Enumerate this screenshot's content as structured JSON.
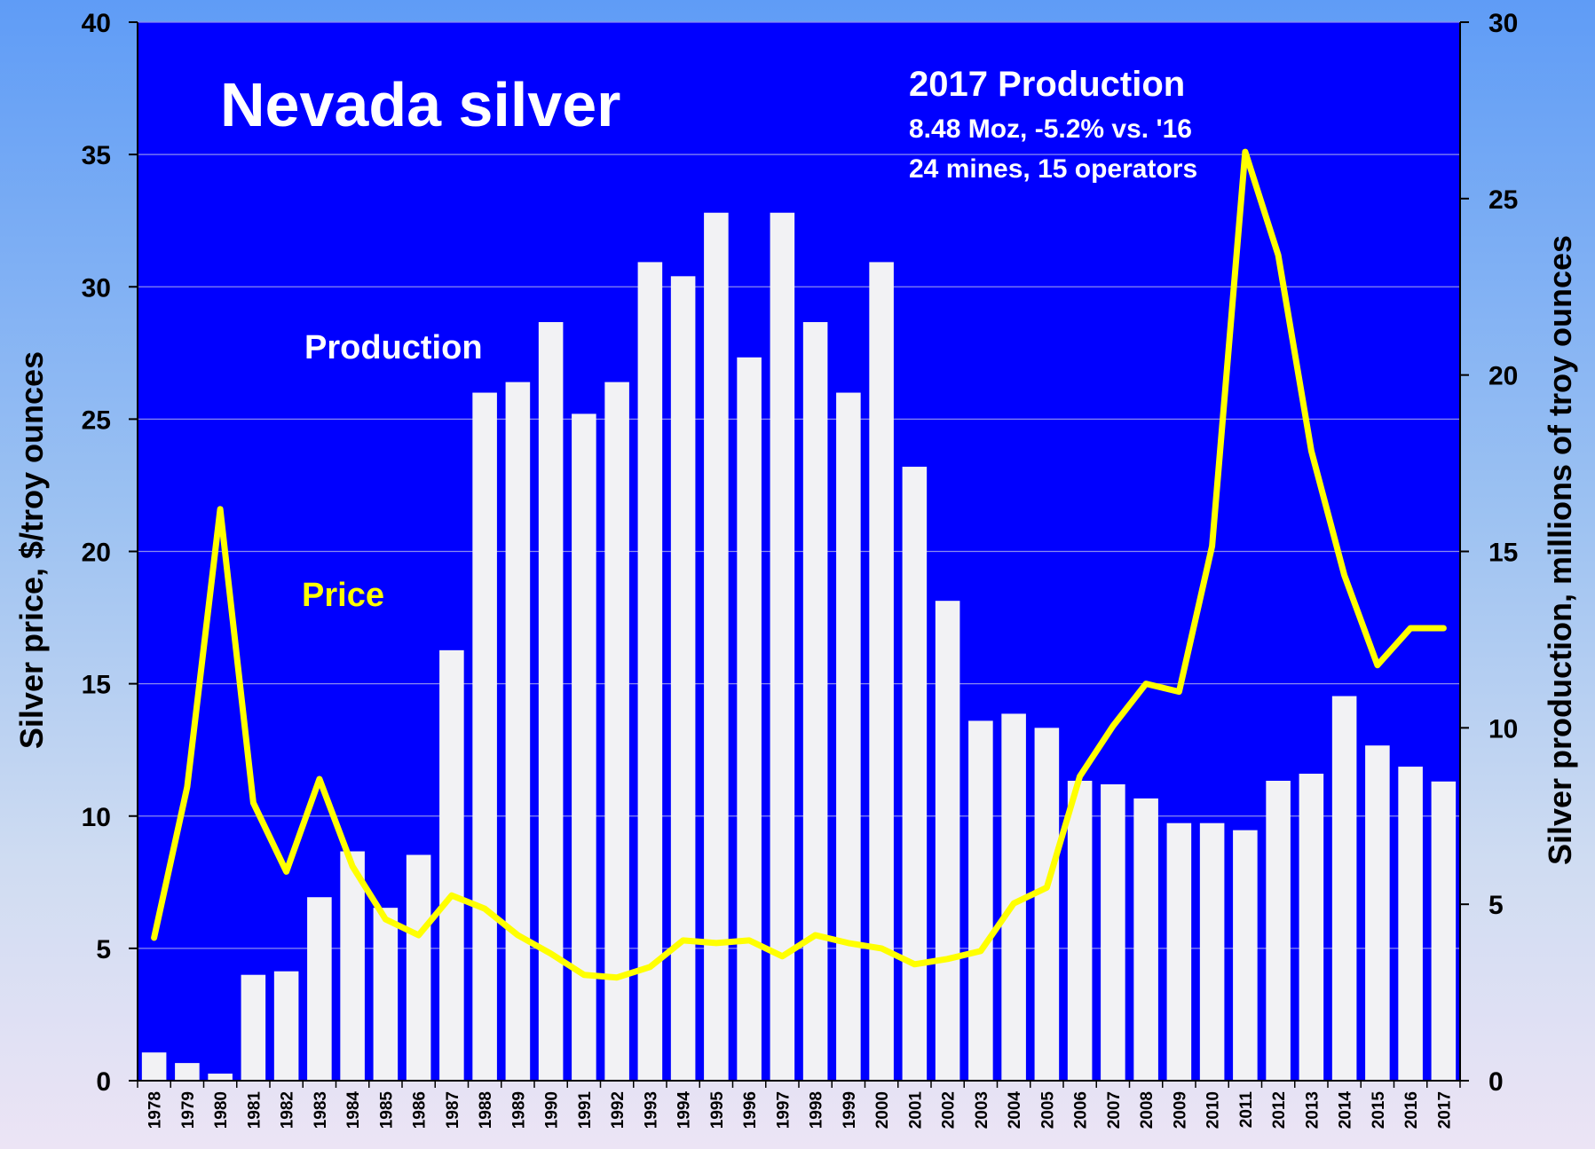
{
  "chart_data": {
    "type": "bar+line",
    "title": "Nevada silver",
    "annotation": {
      "heading": "2017 Production",
      "line1": "8.48 Moz, -5.2% vs. '16",
      "line2": "24 mines, 15 operators"
    },
    "ylabel_left": "Silver price, $/troy ounces",
    "ylabel_right": "Silver production, millions of troy ounces",
    "ylim_left": [
      0,
      40
    ],
    "ylim_right": [
      0,
      30
    ],
    "yticks_left": [
      "0",
      "5",
      "10",
      "15",
      "20",
      "25",
      "30",
      "35",
      "40"
    ],
    "yticks_right": [
      "0",
      "5",
      "10",
      "15",
      "20",
      "25",
      "30"
    ],
    "categories": [
      "1978",
      "1979",
      "1980",
      "1981",
      "1982",
      "1983",
      "1984",
      "1985",
      "1986",
      "1987",
      "1988",
      "1989",
      "1990",
      "1991",
      "1992",
      "1993",
      "1994",
      "1995",
      "1996",
      "1997",
      "1998",
      "1999",
      "2000",
      "2001",
      "2002",
      "2003",
      "2004",
      "2005",
      "2006",
      "2007",
      "2008",
      "2009",
      "2010",
      "2011",
      "2012",
      "2013",
      "2014",
      "2015",
      "2016",
      "2017"
    ],
    "series": [
      {
        "name": "Production",
        "type": "bar",
        "axis": "right",
        "color": "#f2f2f4",
        "values": [
          0.8,
          0.5,
          0.2,
          3.0,
          3.1,
          5.2,
          6.5,
          4.9,
          6.4,
          12.2,
          19.5,
          19.8,
          21.5,
          18.9,
          19.8,
          23.2,
          22.8,
          24.6,
          20.5,
          24.6,
          21.5,
          19.5,
          23.2,
          17.4,
          13.6,
          10.2,
          10.4,
          10.0,
          8.5,
          8.4,
          8.0,
          7.3,
          7.3,
          7.1,
          8.5,
          8.7,
          10.9,
          9.5,
          8.9,
          8.48
        ]
      },
      {
        "name": "Price",
        "type": "line",
        "axis": "left",
        "color": "#ffff00",
        "values": [
          5.4,
          11.1,
          21.6,
          10.5,
          7.9,
          11.4,
          8.1,
          6.1,
          5.5,
          7.0,
          6.5,
          5.5,
          4.8,
          4.0,
          3.9,
          4.3,
          5.3,
          5.2,
          5.3,
          4.7,
          5.5,
          5.2,
          5.0,
          4.4,
          4.6,
          4.9,
          6.7,
          7.3,
          11.5,
          13.4,
          15.0,
          14.7,
          20.2,
          35.1,
          31.2,
          23.8,
          19.1,
          15.7,
          17.1,
          17.1
        ]
      }
    ],
    "grid": "horizontal",
    "colors": {
      "plot_bg": "#0000ff",
      "bars": "#f2f2f4",
      "price_line": "#ffff00",
      "production_label": "#ffffff",
      "price_label": "#ffff00"
    }
  }
}
